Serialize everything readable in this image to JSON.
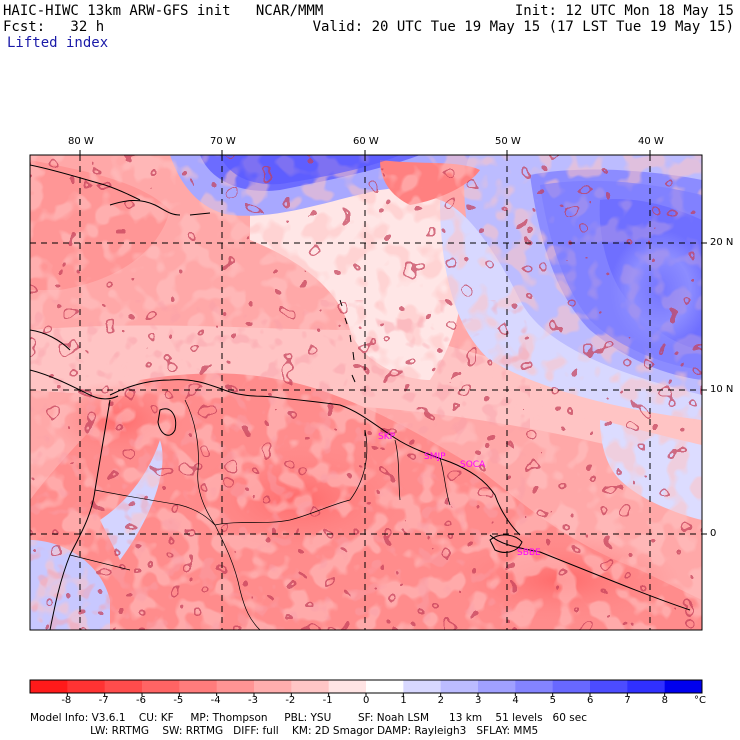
{
  "header": {
    "left_line1": "HAIC-HIWC 13km ARW-GFS init   NCAR/MMM",
    "left_line2": "Fcst:   32 h",
    "field_name": "Lifted index",
    "init": "Init: 12 UTC Mon 18 May 15",
    "valid": "Valid: 20 UTC Tue 19 May 15 (17 LST Tue 19 May 15)"
  },
  "map": {
    "lon_labels": [
      "80 W",
      "70 W",
      "60 W",
      "50 W",
      "40 W"
    ],
    "lat_labels": [
      "20 N",
      "10 N",
      "0"
    ],
    "stations": [
      "SKP",
      "SMJP",
      "SOCA",
      "SBBE"
    ]
  },
  "colorbar": {
    "tick_labels": [
      "-8",
      "-7",
      "-6",
      "-5",
      "-4",
      "-3",
      "-2",
      "-1",
      "0",
      "1",
      "2",
      "3",
      "4",
      "5",
      "6",
      "7",
      "8"
    ],
    "unit": "°C",
    "colors": [
      "#ff1a1a",
      "#ff3333",
      "#ff4c4c",
      "#ff6464",
      "#ff7c7c",
      "#ff9494",
      "#ffaeae",
      "#ffc6c6",
      "#ffe4e4",
      "#ffffff",
      "#d8d8ff",
      "#bcbcff",
      "#a0a0ff",
      "#8484ff",
      "#6868ff",
      "#4c4cff",
      "#3030ff",
      "#0000ee"
    ]
  },
  "footer": {
    "line1": "Model Info: V3.6.1    CU: KF     MP: Thompson     PBL: YSU        SF: Noah LSM      13 km    51 levels   60 sec",
    "line2": "                  LW: RRTMG    SW: RRTMG   DIFF: full    KM: 2D Smagor DAMP: Rayleigh3   SFLAY: MM5"
  }
}
